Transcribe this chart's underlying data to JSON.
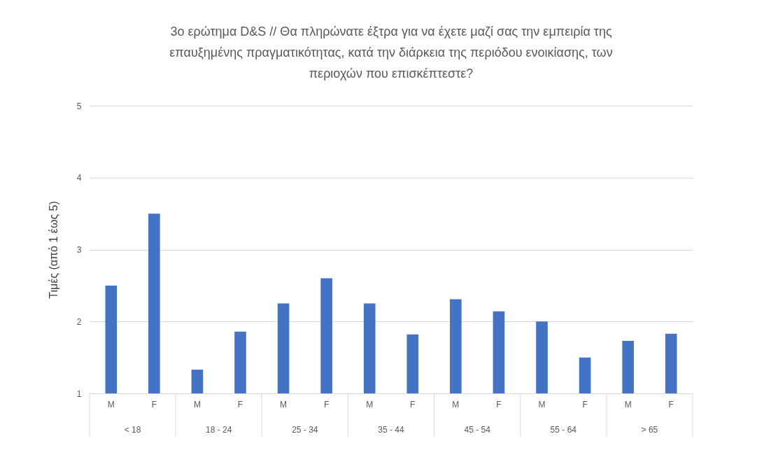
{
  "chart_data": {
    "type": "bar",
    "title": "3ο ερώτημα D&S // Θα πληρώνατε έξτρα για να έχετε μαζί σας την εμπειρία της επαυξημένης πραγματικότητας, κατά την διάρκεια της περιόδου ενοικίασης, των περιοχών που επισκέπτεστε?",
    "ylabel": "Τιμές (από 1 έως 5)",
    "categories": [
      "M",
      "F",
      "M",
      "F",
      "M",
      "F",
      "M",
      "F",
      "M",
      "F",
      "M",
      "F",
      "M",
      "F"
    ],
    "annotations": [
      "< 18",
      "18 - 24",
      "25 - 34",
      "35 - 44",
      "45 - 54",
      "55 - 64",
      "> 65"
    ],
    "values": [
      2.5,
      3.5,
      1.33,
      1.86,
      2.25,
      2.6,
      2.25,
      1.82,
      2.31,
      2.14,
      2.0,
      1.5,
      1.73,
      1.83
    ],
    "color": "#4472c4",
    "ylim": [
      1,
      5
    ],
    "yticks": [
      1,
      2,
      3,
      4,
      5
    ],
    "grid": "y"
  }
}
